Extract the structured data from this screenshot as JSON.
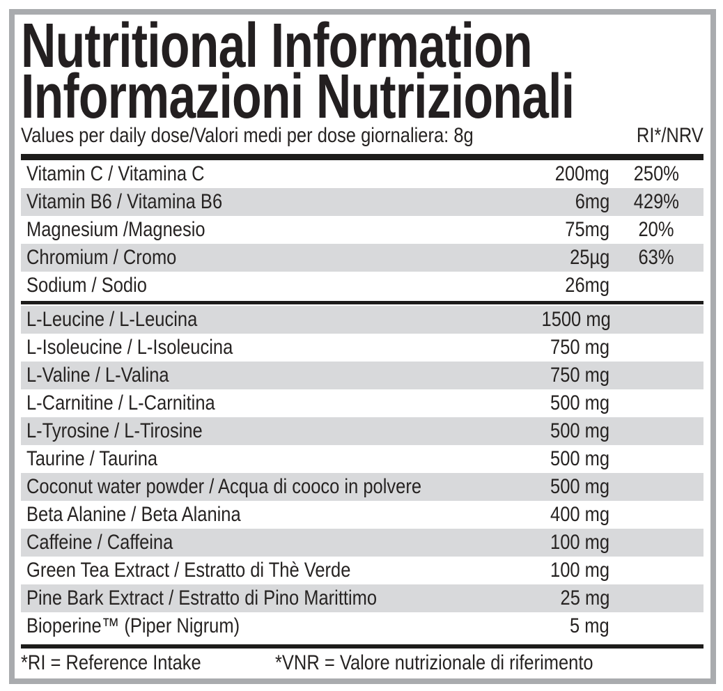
{
  "title": {
    "line1": "Nutritional Information",
    "line2": "Informazioni Nutrizionali"
  },
  "column_header": {
    "left": "Values per daily dose/Valori medi per dose giornaliera: 8g",
    "right": "RI*/NRV"
  },
  "sections": [
    {
      "name": "vitamins-minerals",
      "rows": [
        {
          "label": "Vitamin C / Vitamina C",
          "amount": "200mg",
          "ri": "250%"
        },
        {
          "label": "Vitamin B6 / Vitamina B6",
          "amount": "6mg",
          "ri": "429%"
        },
        {
          "label": "Magnesium /Magnesio",
          "amount": "75mg",
          "ri": "20%"
        },
        {
          "label": "Chromium / Cromo",
          "amount": "25µg",
          "ri": "63%"
        },
        {
          "label": "Sodium / Sodio",
          "amount": "26mg",
          "ri": ""
        }
      ]
    },
    {
      "name": "actives",
      "rows": [
        {
          "label": "L-Leucine / L-Leucina",
          "amount": "1500 mg",
          "ri": ""
        },
        {
          "label": "L-Isoleucine / L-Isoleucina",
          "amount": "750 mg",
          "ri": ""
        },
        {
          "label": "L-Valine / L-Valina",
          "amount": "750 mg",
          "ri": ""
        },
        {
          "label": "L-Carnitine / L-Carnitina",
          "amount": "500 mg",
          "ri": ""
        },
        {
          "label": "L-Tyrosine / L-Tirosine",
          "amount": "500 mg",
          "ri": ""
        },
        {
          "label": "Taurine / Taurina",
          "amount": "500 mg",
          "ri": ""
        },
        {
          "label": "Coconut water powder / Acqua di cooco in polvere",
          "amount": "500 mg",
          "ri": ""
        },
        {
          "label": "Beta Alanine / Beta Alanina",
          "amount": "400 mg",
          "ri": ""
        },
        {
          "label": "Caffeine / Caffeina",
          "amount": "100 mg",
          "ri": ""
        },
        {
          "label": "Green Tea Extract / Estratto di Thè Verde",
          "amount": "100 mg",
          "ri": ""
        },
        {
          "label": "Pine Bark Extract / Estratto di Pino Marittimo",
          "amount": "25 mg",
          "ri": ""
        },
        {
          "label": "Bioperine™ (Piper Nigrum)",
          "amount": "5 mg",
          "ri": ""
        }
      ]
    }
  ],
  "footnote": {
    "left": "*RI = Reference Intake",
    "right": "*VNR = Valore nutrizionale di riferimento"
  },
  "colors": {
    "text": "#262322",
    "title": "#231f20",
    "shade": "#d8d9db",
    "frame": "#a9abae",
    "bar": "#1d1c1b"
  }
}
